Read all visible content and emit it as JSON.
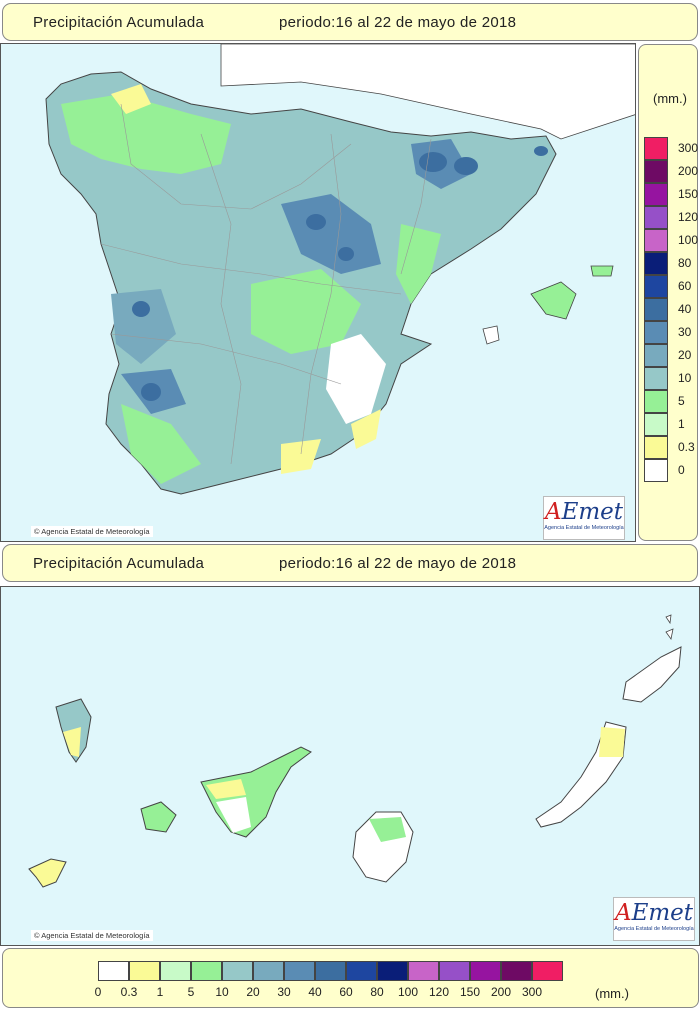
{
  "top_header": {
    "title": "Precipitación Acumulada",
    "period": "periodo:16 al 22 de mayo de 2018"
  },
  "bottom_header": {
    "title": "Precipitación Acumulada",
    "period": "periodo:16 al 22 de mayo de 2018"
  },
  "copyright": "Agencia Estatal de Meteorología",
  "logo": {
    "text_a": "A",
    "text_rest": "Emet",
    "subtitle": "Agencia Estatal de Meteorología"
  },
  "legend": {
    "unit": "(mm.)",
    "classes": [
      {
        "label": "0",
        "color": "#ffffff"
      },
      {
        "label": "0.3",
        "color": "#fafa96"
      },
      {
        "label": "1",
        "color": "#c8fac8"
      },
      {
        "label": "5",
        "color": "#96f096"
      },
      {
        "label": "10",
        "color": "#96c8c8"
      },
      {
        "label": "20",
        "color": "#78aabe"
      },
      {
        "label": "30",
        "color": "#5a8cb4"
      },
      {
        "label": "40",
        "color": "#3c6ea0"
      },
      {
        "label": "60",
        "color": "#1e46a0"
      },
      {
        "label": "80",
        "color": "#0a1e78"
      },
      {
        "label": "100",
        "color": "#c864c8"
      },
      {
        "label": "120",
        "color": "#9650c8"
      },
      {
        "label": "150",
        "color": "#9614a0"
      },
      {
        "label": "200",
        "color": "#6e0a64"
      },
      {
        "label": "300",
        "color": "#f01e64"
      }
    ]
  },
  "colors": {
    "sea": "#e0f7fb",
    "panel": "#ffffcc",
    "border": "#555555"
  }
}
